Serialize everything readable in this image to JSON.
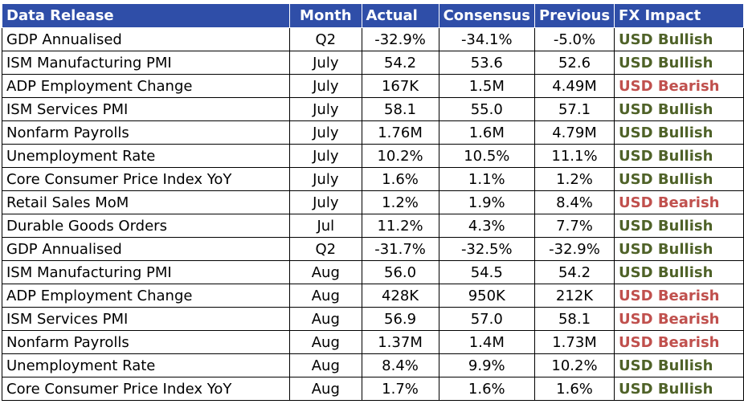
{
  "colors": {
    "header_bg": "#2f4ea8",
    "bullish": "#4f6228",
    "bearish": "#c0504d"
  },
  "headers": [
    "Data Release",
    "Month",
    "Actual",
    "Consensus",
    "Previous",
    "FX Impact"
  ],
  "rows": [
    {
      "release": "GDP Annualised",
      "month": "Q2",
      "actual": "-32.9%",
      "consensus": "-34.1%",
      "previous": "-5.0%",
      "impact": "USD Bullish"
    },
    {
      "release": "ISM Manufacturing PMI",
      "month": "July",
      "actual": "54.2",
      "consensus": "53.6",
      "previous": "52.6",
      "impact": "USD Bullish"
    },
    {
      "release": "ADP Employment Change",
      "month": "July",
      "actual": "167K",
      "consensus": "1.5M",
      "previous": "4.49M",
      "impact": "USD Bearish"
    },
    {
      "release": "ISM Services PMI",
      "month": "July",
      "actual": "58.1",
      "consensus": "55.0",
      "previous": "57.1",
      "impact": "USD Bullish"
    },
    {
      "release": "Nonfarm Payrolls",
      "month": "July",
      "actual": "1.76M",
      "consensus": "1.6M",
      "previous": "4.79M",
      "impact": "USD Bullish"
    },
    {
      "release": "Unemployment Rate",
      "month": "July",
      "actual": "10.2%",
      "consensus": "10.5%",
      "previous": "11.1%",
      "impact": "USD Bullish"
    },
    {
      "release": "Core Consumer Price Index YoY",
      "month": "July",
      "actual": "1.6%",
      "consensus": "1.1%",
      "previous": "1.2%",
      "impact": "USD Bullish"
    },
    {
      "release": "Retail Sales MoM",
      "month": "July",
      "actual": "1.2%",
      "consensus": "1.9%",
      "previous": "8.4%",
      "impact": "USD Bearish"
    },
    {
      "release": "Durable Goods Orders",
      "month": "Jul",
      "actual": "11.2%",
      "consensus": "4.3%",
      "previous": "7.7%",
      "impact": "USD Bullish"
    },
    {
      "release": "GDP Annualised",
      "month": "Q2",
      "actual": "-31.7%",
      "consensus": "-32.5%",
      "previous": "-32.9%",
      "impact": "USD Bullish"
    },
    {
      "release": "ISM Manufacturing PMI",
      "month": "Aug",
      "actual": "56.0",
      "consensus": "54.5",
      "previous": "54.2",
      "impact": "USD Bullish"
    },
    {
      "release": "ADP Employment Change",
      "month": "Aug",
      "actual": "428K",
      "consensus": "950K",
      "previous": "212K",
      "impact": "USD Bearish"
    },
    {
      "release": "ISM Services PMI",
      "month": "Aug",
      "actual": "56.9",
      "consensus": "57.0",
      "previous": "58.1",
      "impact": "USD Bearish"
    },
    {
      "release": "Nonfarm Payrolls",
      "month": "Aug",
      "actual": "1.37M",
      "consensus": "1.4M",
      "previous": "1.73M",
      "impact": "USD Bearish"
    },
    {
      "release": "Unemployment Rate",
      "month": "Aug",
      "actual": "8.4%",
      "consensus": "9.9%",
      "previous": "10.2%",
      "impact": "USD Bullish"
    },
    {
      "release": "Core Consumer Price Index YoY",
      "month": "Aug",
      "actual": "1.7%",
      "consensus": "1.6%",
      "previous": "1.6%",
      "impact": "USD Bullish"
    }
  ]
}
